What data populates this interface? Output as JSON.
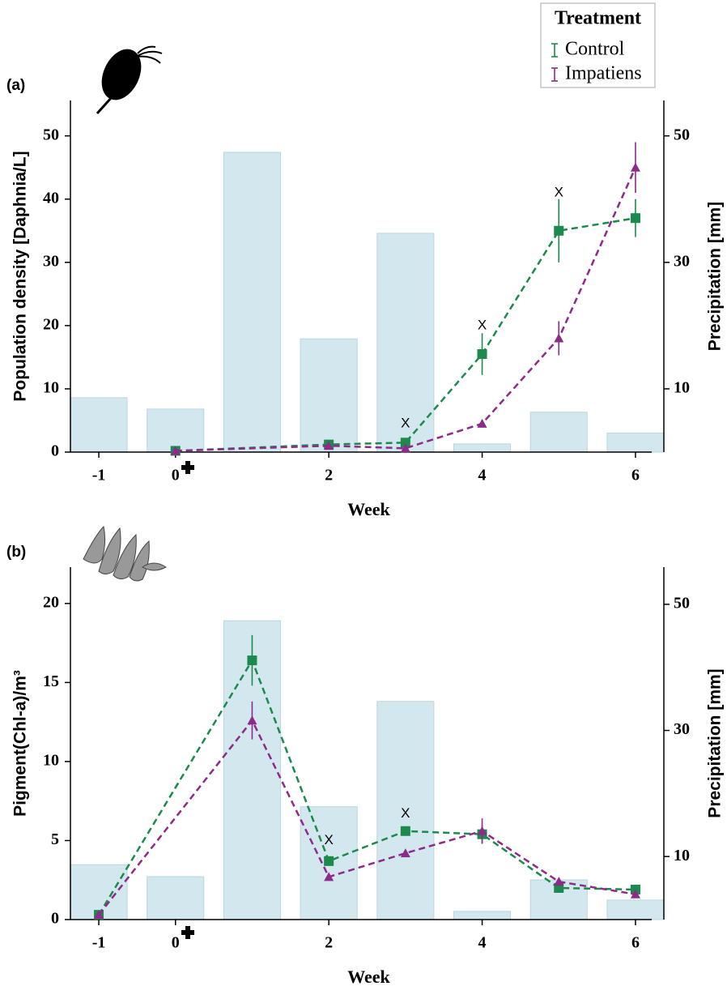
{
  "chart_data": [
    {
      "type": "combo",
      "panel_label": "(a)",
      "x_label": "Week",
      "y_label": "Population density [Daphnia/L]",
      "y2_label": "Precipitation [mm]",
      "xlim": [
        -1.37,
        6.37
      ],
      "xticks": [
        -1,
        0,
        2,
        4,
        6
      ],
      "ylim": [
        0,
        55.6
      ],
      "yticks": [
        0,
        10,
        20,
        30,
        40,
        50
      ],
      "y2lim": [
        0,
        55.6
      ],
      "y2ticks": [
        10,
        30,
        50
      ],
      "precipitation": {
        "axis": "y2",
        "color": "#d3e8ee",
        "x": [
          -1,
          0,
          1,
          2,
          3,
          4,
          5,
          6
        ],
        "values": [
          8.6,
          6.8,
          47.4,
          17.9,
          34.6,
          1.3,
          6.3,
          3.0
        ]
      },
      "series": [
        {
          "name": "Control",
          "color": "#1b8a4c",
          "marker": "square",
          "x": [
            0,
            2,
            3,
            4,
            5,
            6
          ],
          "values": [
            0.2,
            1.2,
            1.5,
            15.5,
            35,
            37
          ],
          "errors": [
            null,
            null,
            null,
            3.3,
            5,
            3
          ]
        },
        {
          "name": "Impatiens",
          "color": "#8e2a8c",
          "marker": "triangle",
          "x": [
            0,
            2,
            3,
            4,
            5,
            6
          ],
          "values": [
            0.2,
            1.0,
            0.6,
            4.5,
            18,
            45
          ],
          "errors": [
            null,
            null,
            null,
            null,
            2.7,
            4
          ]
        }
      ],
      "annotations": [
        {
          "text": "X",
          "x": 3,
          "y": 4.5
        },
        {
          "text": "X",
          "x": 4,
          "y": 20
        },
        {
          "text": "X",
          "x": 5,
          "y": 41
        }
      ],
      "legend": "top-right",
      "legend_title": "Treatment"
    },
    {
      "type": "combo",
      "panel_label": "(b)",
      "x_label": "Week",
      "y_label": "Pigment(Chl-a)/m³",
      "y2_label": "Precipitation [mm]",
      "xlim": [
        -1.37,
        6.37
      ],
      "xticks": [
        -1,
        0,
        2,
        4,
        6
      ],
      "ylim": [
        0,
        22.3
      ],
      "yticks": [
        0,
        5,
        10,
        15,
        20
      ],
      "y2lim": [
        0,
        55.9
      ],
      "y2ticks": [
        10,
        30,
        50
      ],
      "precipitation": {
        "axis": "y2",
        "color": "#d3e8ee",
        "x": [
          -1,
          0,
          1,
          2,
          3,
          4,
          5,
          6
        ],
        "values": [
          8.7,
          6.8,
          47.4,
          17.9,
          34.6,
          1.3,
          6.3,
          3.1
        ]
      },
      "series": [
        {
          "color": "#1b8a4c",
          "marker": "square",
          "x": [
            -1,
            1,
            2,
            3,
            4,
            5,
            6
          ],
          "values": [
            0.3,
            16.4,
            3.7,
            5.6,
            5.4,
            2.0,
            1.9
          ],
          "errors": [
            null,
            1.6,
            null,
            null,
            0.6,
            null,
            null
          ]
        },
        {
          "color": "#8e2a8c",
          "marker": "triangle",
          "x": [
            -1,
            1,
            2,
            3,
            4,
            5,
            6
          ],
          "values": [
            0.3,
            12.6,
            2.7,
            4.2,
            5.6,
            2.4,
            1.6
          ],
          "errors": [
            null,
            1.2,
            null,
            null,
            0.8,
            null,
            null
          ]
        }
      ],
      "annotations": [
        {
          "text": "X",
          "x": 2,
          "y": 5.0
        },
        {
          "text": "X",
          "x": 3,
          "y": 6.7
        }
      ],
      "legend": false
    }
  ]
}
